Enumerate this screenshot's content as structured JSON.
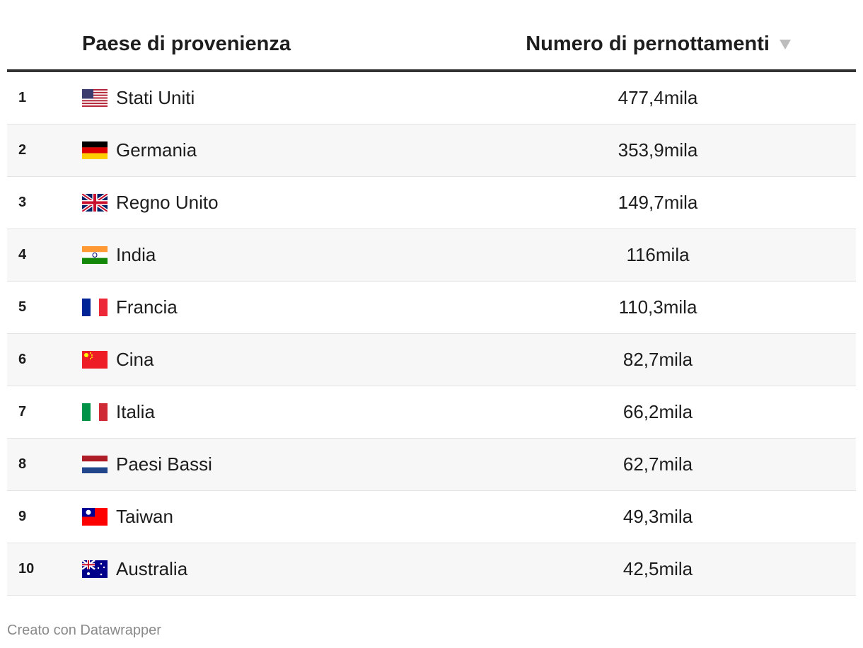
{
  "chart_data": {
    "type": "table",
    "columns": [
      "Paese di provenienza",
      "Numero di pernottamenti"
    ],
    "sort": {
      "column": "Numero di pernottamenti",
      "direction": "descending",
      "icon": "sort-down-triangle-icon"
    },
    "rows": [
      {
        "rank": "1",
        "country": "Stati Uniti",
        "flag": "us",
        "value": "477,4mila"
      },
      {
        "rank": "2",
        "country": "Germania",
        "flag": "de",
        "value": "353,9mila"
      },
      {
        "rank": "3",
        "country": "Regno Unito",
        "flag": "gb",
        "value": "149,7mila"
      },
      {
        "rank": "4",
        "country": "India",
        "flag": "in",
        "value": "116mila"
      },
      {
        "rank": "5",
        "country": "Francia",
        "flag": "fr",
        "value": "110,3mila"
      },
      {
        "rank": "6",
        "country": "Cina",
        "flag": "cn",
        "value": "82,7mila"
      },
      {
        "rank": "7",
        "country": "Italia",
        "flag": "it",
        "value": "66,2mila"
      },
      {
        "rank": "8",
        "country": "Paesi Bassi",
        "flag": "nl",
        "value": "62,7mila"
      },
      {
        "rank": "9",
        "country": "Taiwan",
        "flag": "tw",
        "value": "49,3mila"
      },
      {
        "rank": "10",
        "country": "Australia",
        "flag": "au",
        "value": "42,5mila"
      }
    ],
    "colors": {
      "header_rule": "#333333",
      "stripe": "#f7f7f7",
      "sort_icon": "#bdbdbd"
    }
  },
  "footer": {
    "credit": "Creato con Datawrapper"
  }
}
